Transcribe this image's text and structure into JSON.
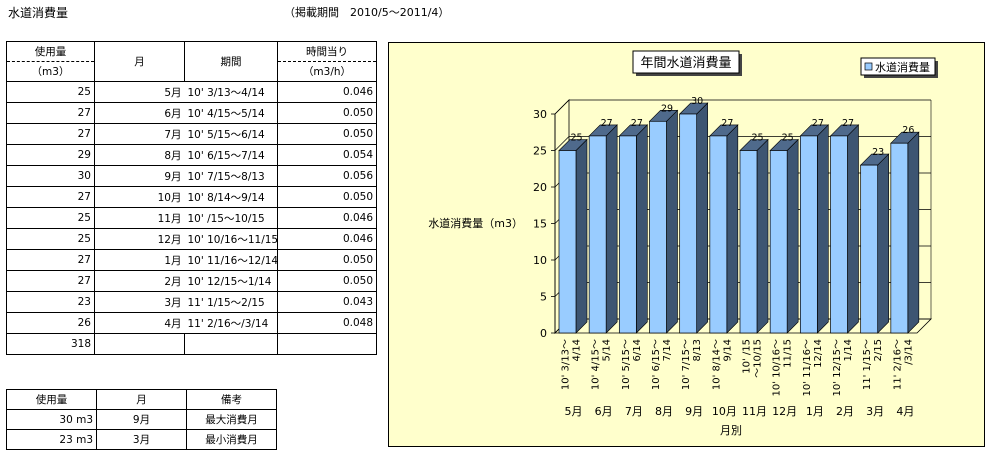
{
  "header": {
    "title": "水道消費量",
    "period": "（掲載期間　2010/5～2011/4）"
  },
  "table": {
    "col_usage_line1": "使用量",
    "col_usage_line2": "（m3）",
    "col_month": "月",
    "col_period": "期間",
    "col_rate_line1": "時間当り",
    "col_rate_line2": "（m3/h）",
    "rows": [
      {
        "usage": "25",
        "month": "5月",
        "period": "10' 3/13～4/14",
        "rate": "0.046"
      },
      {
        "usage": "27",
        "month": "6月",
        "period": "10' 4/15～5/14",
        "rate": "0.050"
      },
      {
        "usage": "27",
        "month": "7月",
        "period": "10' 5/15～6/14",
        "rate": "0.050"
      },
      {
        "usage": "29",
        "month": "8月",
        "period": "10' 6/15～7/14",
        "rate": "0.054"
      },
      {
        "usage": "30",
        "month": "9月",
        "period": "10' 7/15～8/13",
        "rate": "0.056"
      },
      {
        "usage": "27",
        "month": "10月",
        "period": "10' 8/14～9/14",
        "rate": "0.050"
      },
      {
        "usage": "25",
        "month": "11月",
        "period": "10' /15～10/15",
        "rate": "0.046"
      },
      {
        "usage": "25",
        "month": "12月",
        "period": "10' 10/16～11/15",
        "rate": "0.046"
      },
      {
        "usage": "27",
        "month": "1月",
        "period": "10' 11/16～12/14",
        "rate": "0.050"
      },
      {
        "usage": "27",
        "month": "2月",
        "period": "10' 12/15～1/14",
        "rate": "0.050"
      },
      {
        "usage": "23",
        "month": "3月",
        "period": "11' 1/15～2/15",
        "rate": "0.043"
      },
      {
        "usage": "26",
        "month": "4月",
        "period": "11' 2/16～/3/14",
        "rate": "0.048"
      }
    ],
    "total": "318"
  },
  "summary": {
    "col_usage": "使用量",
    "col_month": "月",
    "col_note": "備考",
    "rows": [
      {
        "usage": "30 m3",
        "month": "9月",
        "note": "最大消費月"
      },
      {
        "usage": "23 m3",
        "month": "3月",
        "note": "最小消費月"
      }
    ]
  },
  "colors": {
    "chart_bg": "#ffffcc",
    "bar_front": "#99ccff",
    "bar_side": "#3d5572",
    "bar_top": "#4f6a8c",
    "wall": "#ffffcc"
  },
  "chart_data": {
    "type": "bar",
    "title": "年間水道消費量",
    "ylabel": "水道消費量（m3）",
    "xlabel": "月別",
    "legend": "水道消費量",
    "legend_position": "top-right",
    "ylim": [
      0,
      30
    ],
    "yticks": [
      "0",
      "5",
      "10",
      "15",
      "20",
      "25",
      "30"
    ],
    "grid": true,
    "categories": [
      "5月",
      "6月",
      "7月",
      "8月",
      "9月",
      "10月",
      "11月",
      "12月",
      "1月",
      "2月",
      "3月",
      "4月"
    ],
    "period_labels": [
      [
        "10' 3/13～",
        "4/14"
      ],
      [
        "10' 4/15～",
        "5/14"
      ],
      [
        "10' 5/15～",
        "6/14"
      ],
      [
        "10' 6/15～",
        "7/14"
      ],
      [
        "10' 7/15～",
        "8/13"
      ],
      [
        "10' 8/14～",
        "9/14"
      ],
      [
        "10' /15",
        "～10/15"
      ],
      [
        "10' 10/16～",
        "11/15"
      ],
      [
        "10' 11/16～",
        "12/14"
      ],
      [
        "10' 12/15～",
        "1/14"
      ],
      [
        "11' 1/15～",
        "2/15"
      ],
      [
        "11' 2/16～",
        "/3/14"
      ]
    ],
    "values": [
      25,
      27,
      27,
      29,
      30,
      27,
      25,
      25,
      27,
      27,
      23,
      26
    ],
    "data_labels": [
      "25",
      "27",
      "27",
      "29",
      "30",
      "27",
      "25",
      "25",
      "27",
      "27",
      "23",
      "26"
    ]
  }
}
